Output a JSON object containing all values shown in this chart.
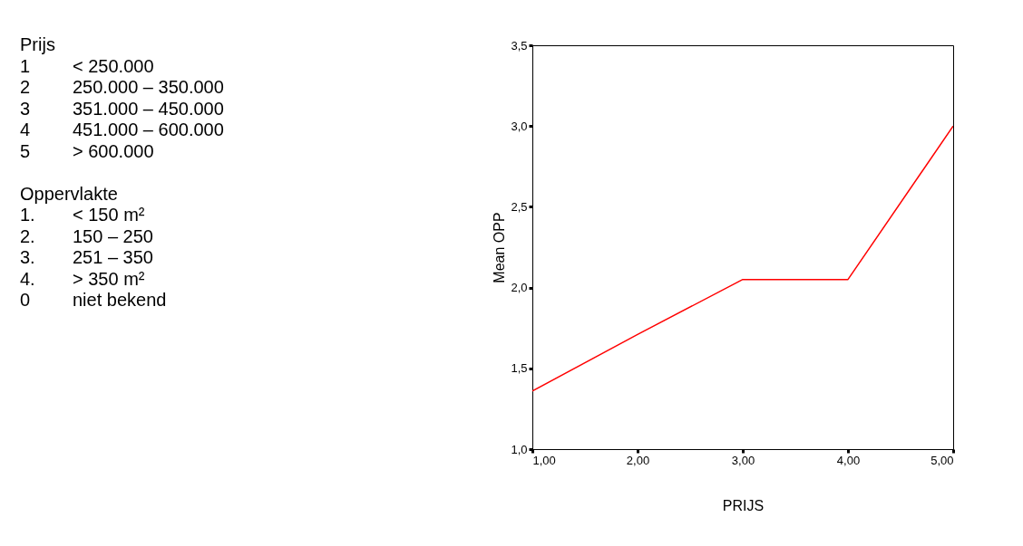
{
  "chart_data": {
    "type": "line",
    "xlabel": "PRIJS",
    "ylabel": "Mean OPP",
    "x": [
      1,
      2,
      3,
      4,
      5
    ],
    "series": [
      {
        "color": "#ff0000",
        "values": [
          1.36,
          1.71,
          2.05,
          2.05,
          3.0
        ]
      }
    ],
    "xlim": [
      1,
      5
    ],
    "ylim": [
      1,
      3.5
    ],
    "xticks": [
      {
        "value": 1,
        "label": "1,00"
      },
      {
        "value": 2,
        "label": "2,00"
      },
      {
        "value": 3,
        "label": "3,00"
      },
      {
        "value": 4,
        "label": "4,00"
      },
      {
        "value": 5,
        "label": "5,00"
      }
    ],
    "yticks": [
      {
        "value": 1,
        "label": "1,0"
      },
      {
        "value": 1.5,
        "label": "1,5"
      },
      {
        "value": 2,
        "label": "2,0"
      },
      {
        "value": 2.5,
        "label": "2,5"
      },
      {
        "value": 3,
        "label": "3,0"
      },
      {
        "value": 3.5,
        "label": "3,5"
      }
    ],
    "grid": false,
    "marker": "none",
    "line_style": "solid",
    "annotations": [
      "Prijs",
      "1\t< 250.000",
      "2\t250.000 – 350.000",
      "3\t351.000 – 450.000",
      "4\t451.000 – 600.000",
      "5\t> 600.000",
      "Oppervlakte",
      "1.\t< 150 m²",
      "2.\t150 – 250",
      "3.\t251 – 350",
      "4.\t> 350 m²",
      "0\tniet bekend"
    ]
  }
}
